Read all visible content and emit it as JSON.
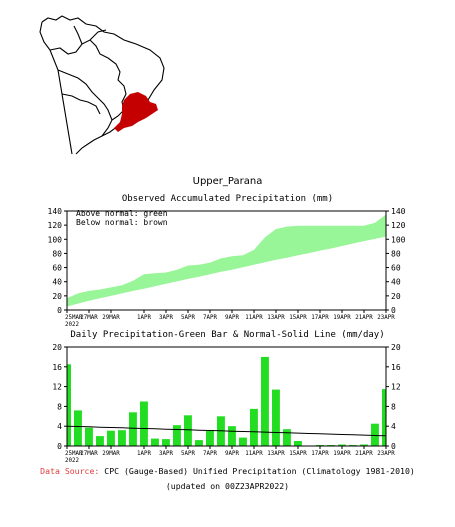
{
  "region_name": "Upper_Parana",
  "colors": {
    "above_band": "#98f598",
    "bar": "#22dd22",
    "region": "#c40000"
  },
  "footer": {
    "source_label": "Data Source:",
    "source_text": "CPC (Gauge-Based) Unified Precipitation (Climatology 1981-2010)",
    "updated": "(updated on 00Z23APR2022)"
  },
  "chart_data": [
    {
      "type": "area",
      "title": "Observed Accumulated Precipitation (mm)",
      "annotations": [
        "Above normal: green",
        "Below normal: brown"
      ],
      "x": [
        "25MAR",
        "26MAR",
        "27MAR",
        "28MAR",
        "29MAR",
        "30MAR",
        "31MAR",
        "1APR",
        "2APR",
        "3APR",
        "4APR",
        "5APR",
        "6APR",
        "7APR",
        "8APR",
        "9APR",
        "10APR",
        "11APR",
        "12APR",
        "13APR",
        "14APR",
        "15APR",
        "16APR",
        "17APR",
        "18APR",
        "19APR",
        "20APR",
        "21APR",
        "22APR",
        "23APR"
      ],
      "x_tick_labels": [
        "25MAR\n2022",
        "27MAR",
        "29MAR",
        "1APR",
        "3APR",
        "5APR",
        "7APR",
        "9APR",
        "11APR",
        "13APR",
        "15APR",
        "17APR",
        "19APR",
        "21APR",
        "23APR"
      ],
      "series": [
        {
          "values": [
            16.5,
            23.5,
            27,
            29,
            32,
            35,
            41.5,
            50.5,
            52,
            53,
            57,
            63,
            64,
            67,
            73,
            76,
            77.5,
            85,
            103,
            114.5,
            118,
            119,
            119,
            119,
            119,
            119,
            119,
            119,
            123.5,
            135
          ]
        },
        {
          "values": [
            5,
            9,
            13,
            16.5,
            20,
            23.5,
            27,
            30,
            33.5,
            37,
            40.5,
            44,
            47,
            50.5,
            54,
            57,
            60.5,
            64,
            67.5,
            71,
            74,
            77.5,
            80.5,
            84,
            87,
            90.5,
            94,
            97.5,
            100.5,
            104
          ]
        }
      ],
      "ylim": [
        0,
        140
      ],
      "y_ticks": [
        0,
        20,
        40,
        60,
        80,
        100,
        120,
        140
      ]
    },
    {
      "type": "bar",
      "title": "Daily Precipitation-Green Bar & Normal-Solid Line (mm/day)",
      "x": [
        "25MAR",
        "26MAR",
        "27MAR",
        "28MAR",
        "29MAR",
        "30MAR",
        "31MAR",
        "1APR",
        "2APR",
        "3APR",
        "4APR",
        "5APR",
        "6APR",
        "7APR",
        "8APR",
        "9APR",
        "10APR",
        "11APR",
        "12APR",
        "13APR",
        "14APR",
        "15APR",
        "16APR",
        "17APR",
        "18APR",
        "19APR",
        "20APR",
        "21APR",
        "22APR",
        "23APR"
      ],
      "x_tick_labels": [
        "25MAR\n2022",
        "27MAR",
        "29MAR",
        "1APR",
        "3APR",
        "5APR",
        "7APR",
        "9APR",
        "11APR",
        "13APR",
        "15APR",
        "17APR",
        "19APR",
        "21APR",
        "23APR"
      ],
      "series": [
        {
          "values": [
            16.5,
            7.2,
            3.7,
            2.0,
            3.1,
            3.2,
            6.8,
            9.0,
            1.5,
            1.4,
            4.2,
            6.2,
            1.2,
            3.2,
            6.0,
            4.0,
            1.7,
            7.5,
            18.0,
            11.4,
            3.4,
            1.0,
            0.1,
            0.2,
            0.2,
            0.3,
            0.2,
            0.3,
            4.5,
            11.5
          ]
        },
        {
          "values": [
            4.0,
            3.93,
            3.87,
            3.8,
            3.73,
            3.67,
            3.6,
            3.53,
            3.47,
            3.4,
            3.33,
            3.27,
            3.2,
            3.13,
            3.07,
            3.0,
            2.93,
            2.87,
            2.8,
            2.73,
            2.67,
            2.6,
            2.53,
            2.47,
            2.4,
            2.33,
            2.27,
            2.2,
            2.13,
            2.07
          ]
        }
      ],
      "ylim": [
        0,
        20
      ],
      "y_ticks": [
        0,
        4,
        8,
        12,
        16,
        20
      ]
    }
  ]
}
